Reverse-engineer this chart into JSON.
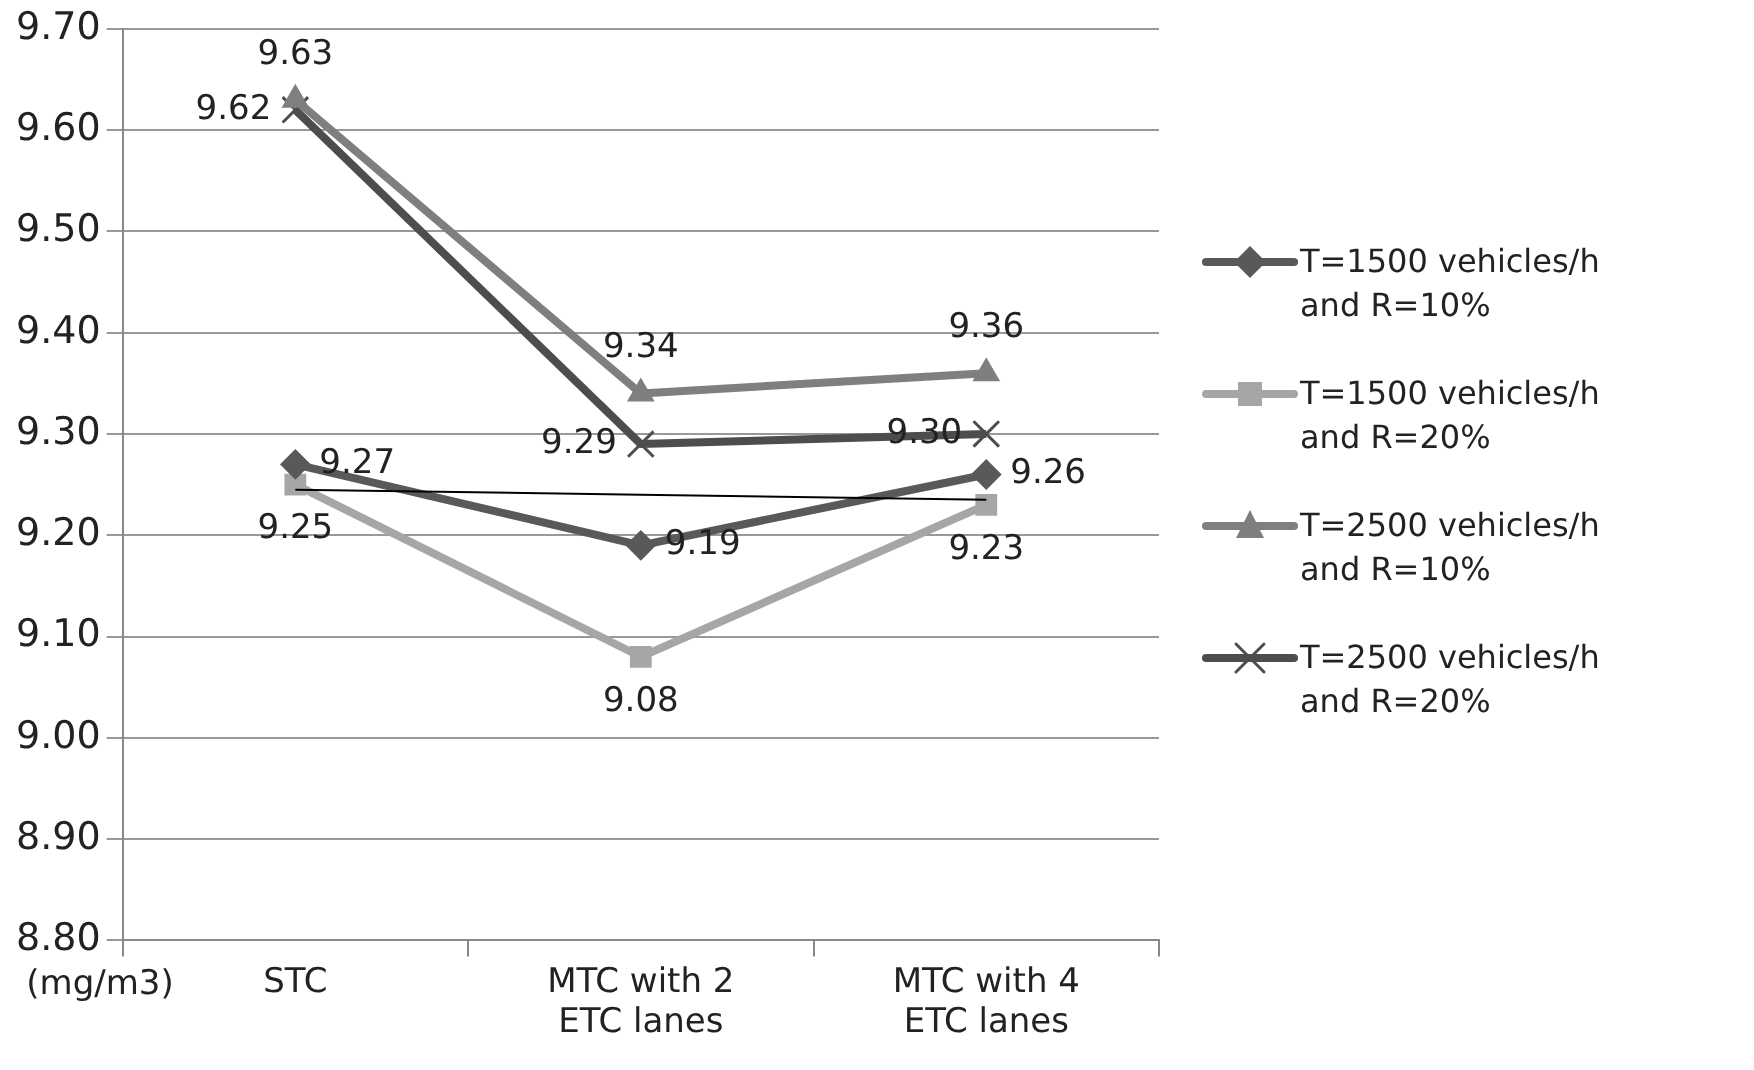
{
  "chart_data": {
    "type": "line",
    "ylabel": "(mg/m3)",
    "categories": [
      "STC",
      "MTC with 2 ETC lanes",
      "MTC with 4 ETC lanes"
    ],
    "series": [
      {
        "name": "T=1500 vehicles/h and R=10%",
        "color": "#595959",
        "marker": "diamond",
        "values": [
          9.27,
          9.19,
          9.26
        ],
        "value_labels": [
          "9.27",
          "9.19",
          "9.26"
        ]
      },
      {
        "name": "T=1500 vehicles/h and R=20%",
        "color": "#a6a6a6",
        "marker": "square",
        "values": [
          9.25,
          9.08,
          9.23
        ],
        "value_labels": [
          "9.25",
          "9.08",
          "9.23"
        ]
      },
      {
        "name": "T=2500 vehicles/h and R=10%",
        "color": "#7f7f7f",
        "marker": "triangle",
        "values": [
          9.63,
          9.34,
          9.36
        ],
        "value_labels": [
          "9.63",
          "9.34",
          "9.36"
        ]
      },
      {
        "name": "T=2500 vehicles/h and R=20%",
        "color": "#4d4d4d",
        "marker": "cross",
        "values": [
          9.62,
          9.29,
          9.3
        ],
        "value_labels": [
          "9.62",
          "9.29",
          "9.30"
        ]
      },
      {
        "type": "line",
        "color": "#000000",
        "marker": "none",
        "values": [
          9.245,
          9.24,
          9.235
        ]
      }
    ],
    "ylim": [
      8.8,
      9.7
    ],
    "yticks": [
      {
        "value": 8.8,
        "label": "8.80"
      },
      {
        "value": 8.9,
        "label": "8.90"
      },
      {
        "value": 9.0,
        "label": "9.00"
      },
      {
        "value": 9.1,
        "label": "9.10"
      },
      {
        "value": 9.2,
        "label": "9.20"
      },
      {
        "value": 9.3,
        "label": "9.30"
      },
      {
        "value": 9.4,
        "label": "9.40"
      },
      {
        "value": 9.5,
        "label": "9.50"
      },
      {
        "value": 9.6,
        "label": "9.60"
      },
      {
        "value": 9.7,
        "label": "9.70"
      }
    ],
    "grid": "y",
    "legend": "right"
  }
}
